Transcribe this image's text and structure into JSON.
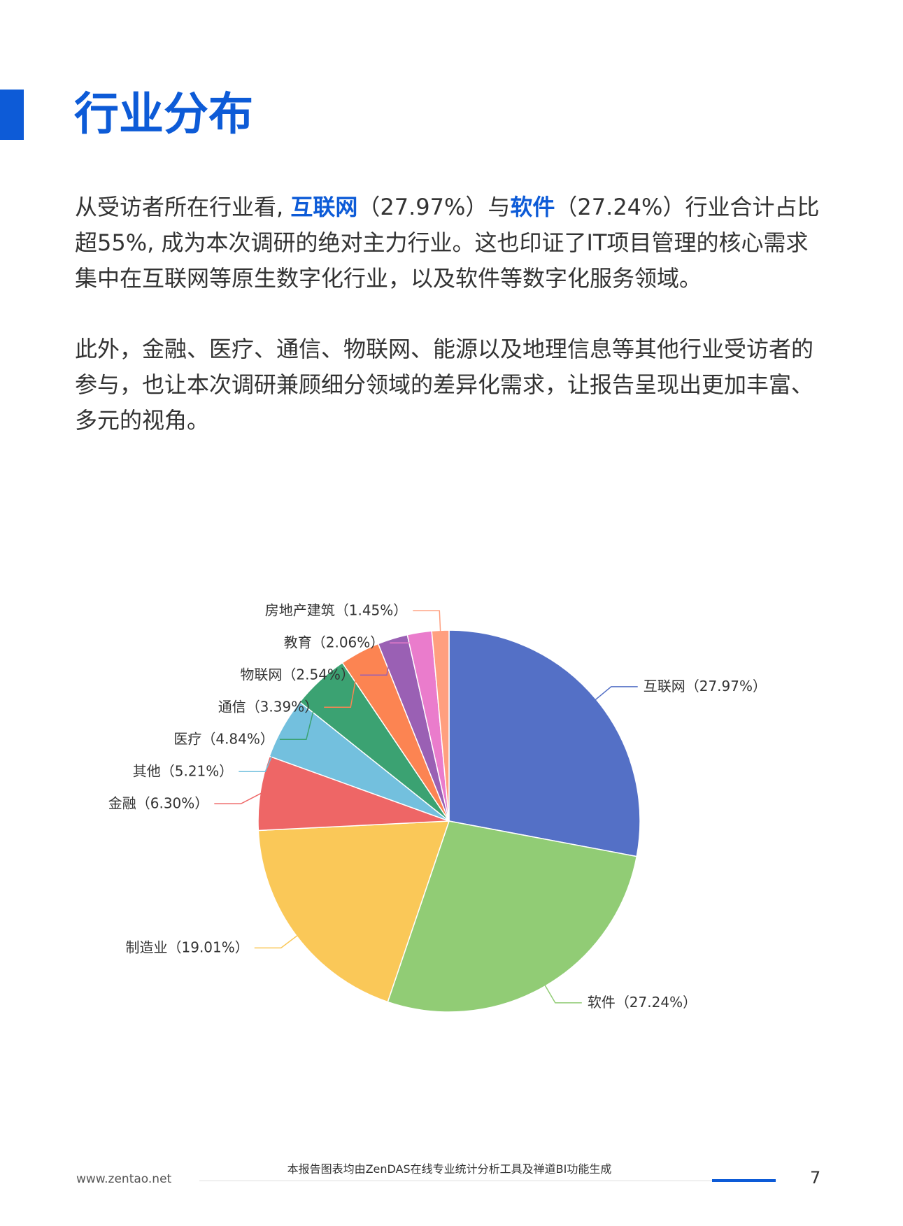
{
  "header": {
    "title": "行业分布"
  },
  "paragraphs": [
    {
      "segments": [
        "从受访者所在行业看, ",
        "互联网",
        "（27.97%）与",
        "软件",
        "（27.24%）行业合计占比超55%, 成为本次调研的绝对主力行业。这也印证了IT项目管理的核心需求集中在互联网等原生数字化行业，以及软件等数字化服务领域。"
      ]
    },
    {
      "segments": [
        "此外，金融、医疗、通信、物联网、能源以及地理信息等其他行业受访者的参与，也让本次调研兼顾细分领域的差异化需求，让报告呈现出更加丰富、多元的视角。"
      ]
    }
  ],
  "chart_data": {
    "type": "pie",
    "categories": [
      "互联网",
      "软件",
      "制造业",
      "金融",
      "其他",
      "医疗",
      "通信",
      "物联网",
      "教育",
      "房地产建筑"
    ],
    "values": [
      27.97,
      27.24,
      19.01,
      6.3,
      5.21,
      4.84,
      3.39,
      2.54,
      2.06,
      1.45
    ],
    "value_labels": [
      "（27.97%）",
      "（27.24%）",
      "（19.01%）",
      "（6.30%）",
      "（5.21%）",
      "（4.84%）",
      "（3.39%）",
      "（2.54%）",
      "（2.06%）",
      "（1.45%）"
    ],
    "colors": [
      "#5470c6",
      "#91cc75",
      "#fac858",
      "#ee6666",
      "#73c0de",
      "#3ba272",
      "#fc8452",
      "#9a60b4",
      "#ea7ccc",
      "#ff9f7f"
    ]
  },
  "footer": {
    "site": "www.zentao.net",
    "note": "本报告图表均由ZenDAS在线专业统计分析工具及禅道BI功能生成",
    "page": "7"
  }
}
